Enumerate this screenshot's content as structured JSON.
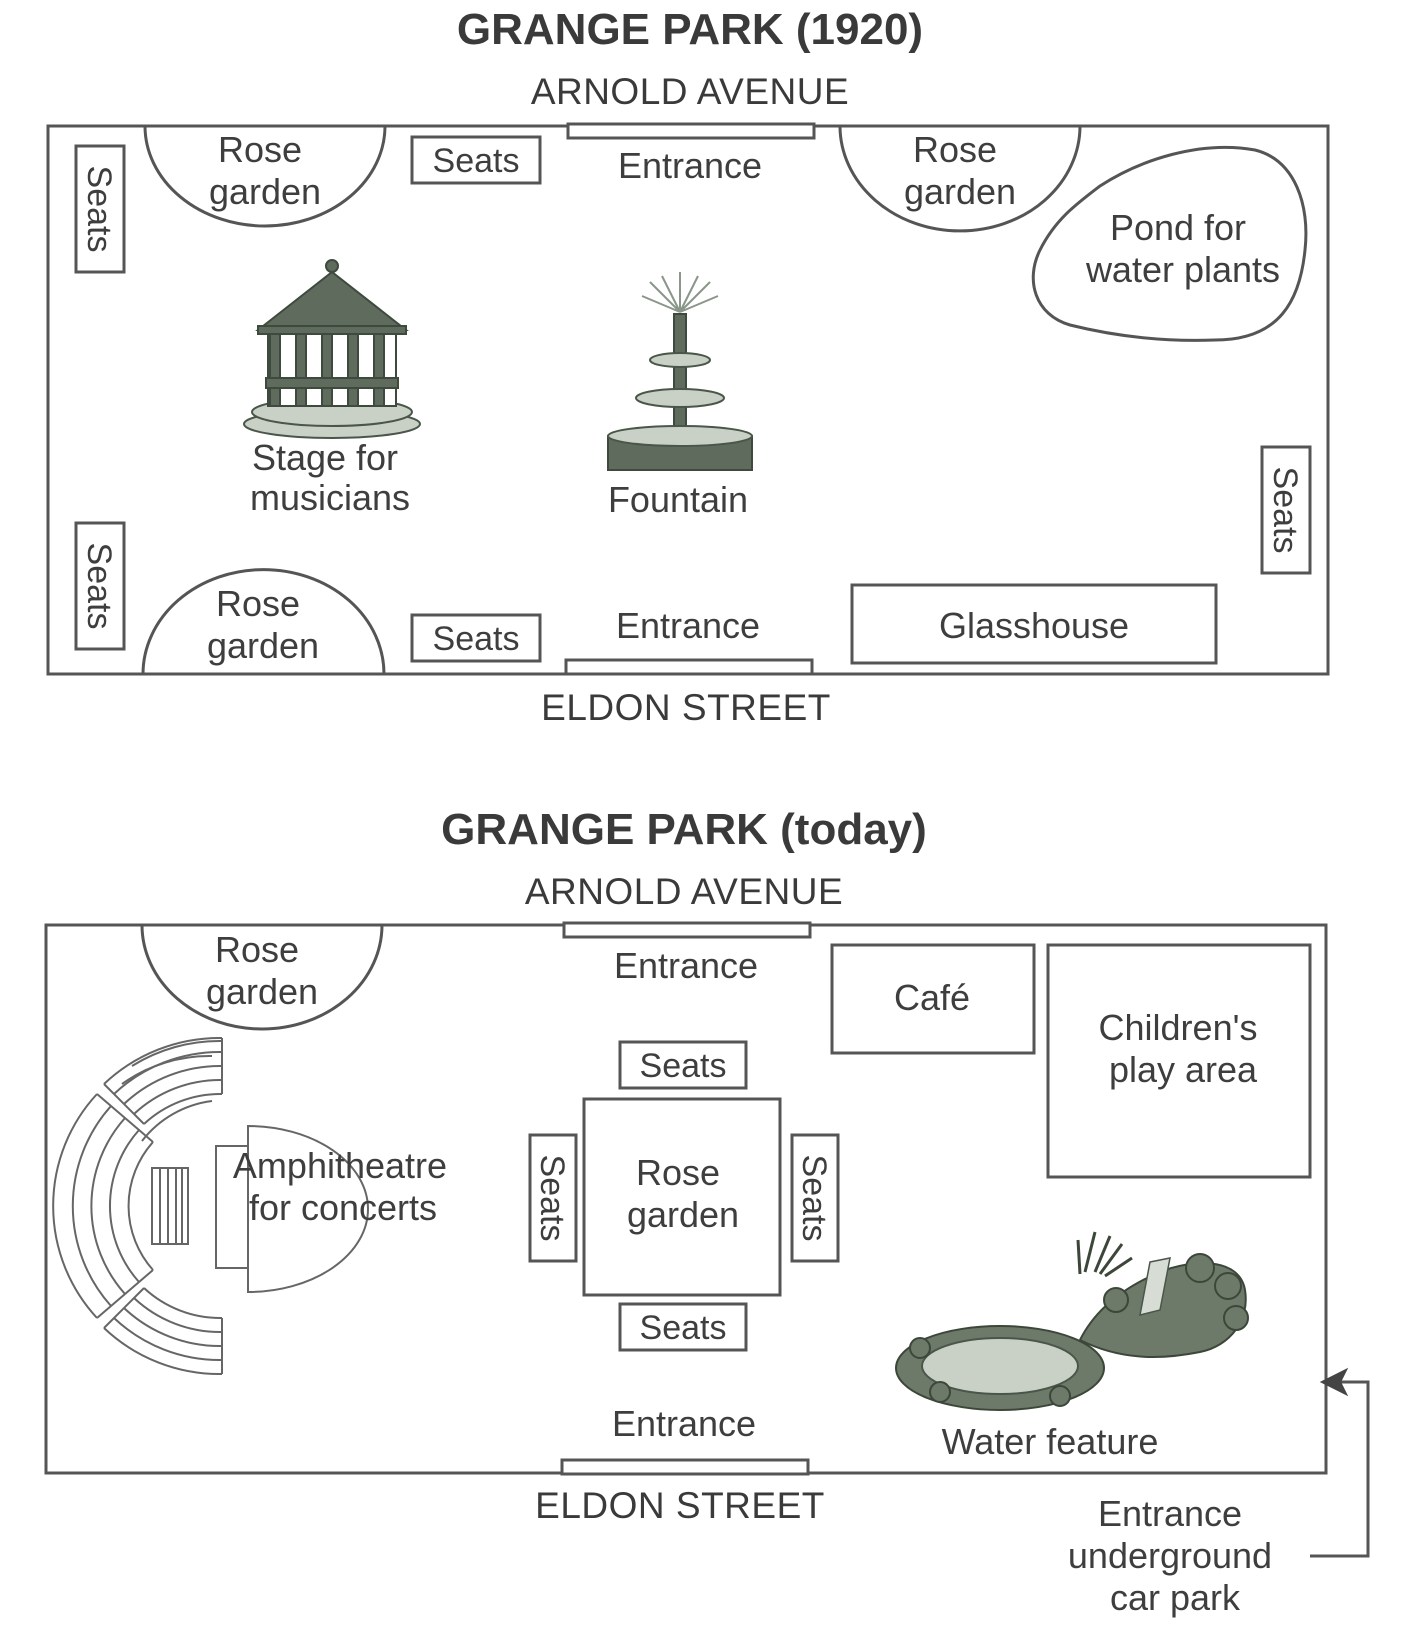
{
  "map_1920": {
    "title": "GRANGE PARK (1920)",
    "north_street": "ARNOLD AVENUE",
    "south_street": "ELDON STREET",
    "rose_garden_tl": [
      "Rose",
      "garden"
    ],
    "rose_garden_tr": [
      "Rose",
      "garden"
    ],
    "rose_garden_bl": [
      "Rose",
      "garden"
    ],
    "seats_top": "Seats",
    "seats_bottom": "Seats",
    "seats_left_top": "Seats",
    "seats_left_bottom": "Seats",
    "seats_right": "Seats",
    "entrance_top": "Entrance",
    "entrance_bottom": "Entrance",
    "pond": [
      "Pond for",
      "water plants"
    ],
    "stage": [
      "Stage for",
      "musicians"
    ],
    "fountain": "Fountain",
    "glasshouse": "Glasshouse"
  },
  "map_today": {
    "title": "GRANGE PARK (today)",
    "north_street": "ARNOLD AVENUE",
    "south_street": "ELDON STREET",
    "rose_garden_tl": [
      "Rose",
      "garden"
    ],
    "entrance_top": "Entrance",
    "entrance_bottom": "Entrance",
    "cafe": "Café",
    "play_area": [
      "Children's",
      "play area"
    ],
    "amphitheatre": [
      "Amphitheatre",
      "for concerts"
    ],
    "seats_top": "Seats",
    "seats_bottom": "Seats",
    "seats_left": "Seats",
    "seats_right": "Seats",
    "rose_garden_center": [
      "Rose",
      "garden"
    ],
    "water_feature": "Water feature",
    "car_park": [
      "Entrance",
      "underground",
      "car park"
    ]
  },
  "colors": {
    "outline": "#555555",
    "illustration_dark": "#5f6b5d",
    "illustration_light": "#c9d1c6"
  }
}
